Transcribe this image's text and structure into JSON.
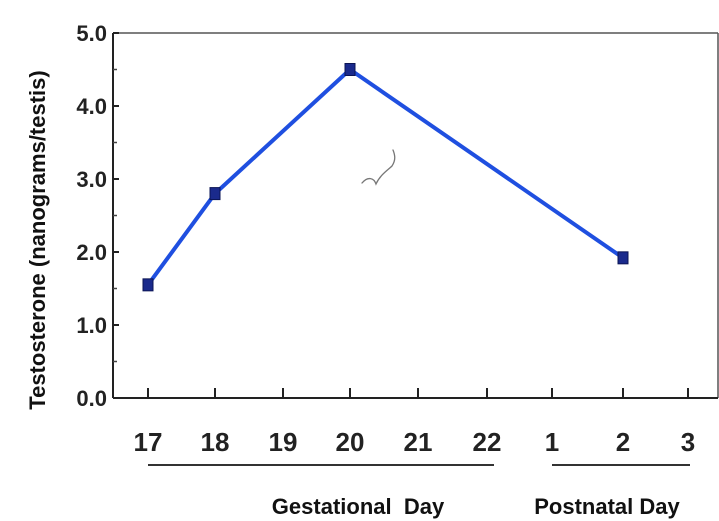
{
  "chart_data": {
    "type": "line",
    "title": "",
    "ylabel": "Testosterone (nanograms/testis)",
    "xlabel": "",
    "ylim": [
      0,
      5
    ],
    "y_ticks": [
      "0.0",
      "1.0",
      "2.0",
      "3.0",
      "4.0",
      "5.0"
    ],
    "categories": [
      "17",
      "18",
      "19",
      "20",
      "21",
      "22",
      "1",
      "2",
      "3"
    ],
    "groups": [
      {
        "label": "Gestational  Day",
        "categories": [
          "17",
          "18",
          "19",
          "20",
          "21",
          "22"
        ]
      },
      {
        "label": "Postnatal Day",
        "categories": [
          "1",
          "2",
          "3"
        ]
      }
    ],
    "series": [
      {
        "points": [
          {
            "x": "17",
            "y": 1.55
          },
          {
            "x": "18",
            "y": 2.8
          },
          {
            "x": "20",
            "y": 4.5
          },
          {
            "x": "2",
            "y": 1.92
          }
        ],
        "color": "#1f4fe0",
        "marker_color": "#1a2a8c"
      }
    ],
    "grid": false,
    "legend": "none"
  }
}
